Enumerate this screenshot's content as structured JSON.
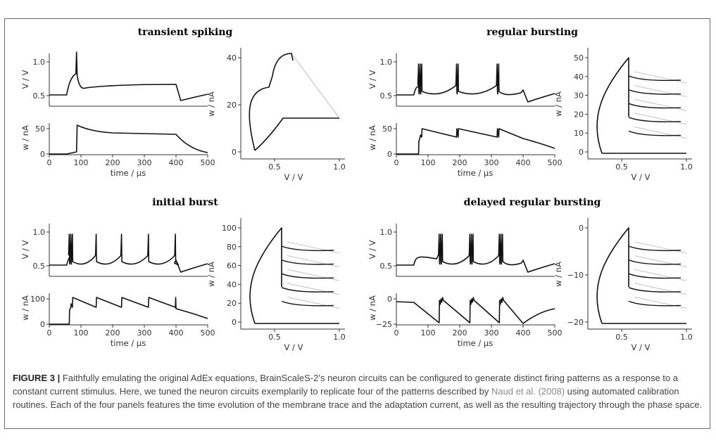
{
  "figure": {
    "panels": [
      {
        "title": "transient spiking",
        "time_ticks": [
          "0",
          "100",
          "200",
          "300",
          "400",
          "500"
        ],
        "v_ticks": [
          "1.0",
          "0.5"
        ],
        "w_ticks": [
          "50",
          "0"
        ],
        "phase_x_ticks": [
          "0.5",
          "1.0"
        ],
        "phase_y_ticks": [
          "40",
          "20",
          "0"
        ]
      },
      {
        "title": "regular bursting",
        "time_ticks": [
          "0",
          "100",
          "200",
          "300",
          "400",
          "500"
        ],
        "v_ticks": [
          "1.0",
          "0.5"
        ],
        "w_ticks": [
          "50",
          "0"
        ],
        "phase_x_ticks": [
          "0.5",
          "1.0"
        ],
        "phase_y_ticks": [
          "50",
          "40",
          "30",
          "20",
          "10",
          "0"
        ]
      },
      {
        "title": "initial burst",
        "time_ticks": [
          "0",
          "100",
          "200",
          "300",
          "400",
          "500"
        ],
        "v_ticks": [
          "1.0",
          "0.5"
        ],
        "w_ticks": [
          "100",
          "0"
        ],
        "phase_x_ticks": [
          "0.5",
          "1.0"
        ],
        "phase_y_ticks": [
          "100",
          "80",
          "60",
          "40",
          "20",
          "0"
        ]
      },
      {
        "title": "delayed regular bursting",
        "time_ticks": [
          "0",
          "100",
          "200",
          "300",
          "400",
          "500"
        ],
        "v_ticks": [
          "1.0",
          "0.5"
        ],
        "w_ticks": [
          "0",
          "−25"
        ],
        "phase_x_ticks": [
          "0.5",
          "1.0"
        ],
        "phase_y_ticks": [
          "0",
          "−10",
          "−20"
        ]
      }
    ],
    "labels": {
      "v": "V / V",
      "w": "w / nA",
      "time": "time / μs",
      "phase_x": "V / V",
      "phase_y": "w / nA"
    }
  },
  "caption": {
    "label": "FIGURE 3 |",
    "text_before": " Faithfully emulating the original AdEx equations, BrainScaleS-2’s neuron circuits can be configured to generate distinct firing patterns as a response to a constant current stimulus. Here, we tuned the neuron circuits exemplarily to replicate four of the patterns described by ",
    "citation": "Naud et al. (2008)",
    "text_after": " using automated calibration routines. Each of the four panels features the time evolution of the membrane trace and the adaptation current, as well as the resulting trajectory through the phase space."
  }
}
